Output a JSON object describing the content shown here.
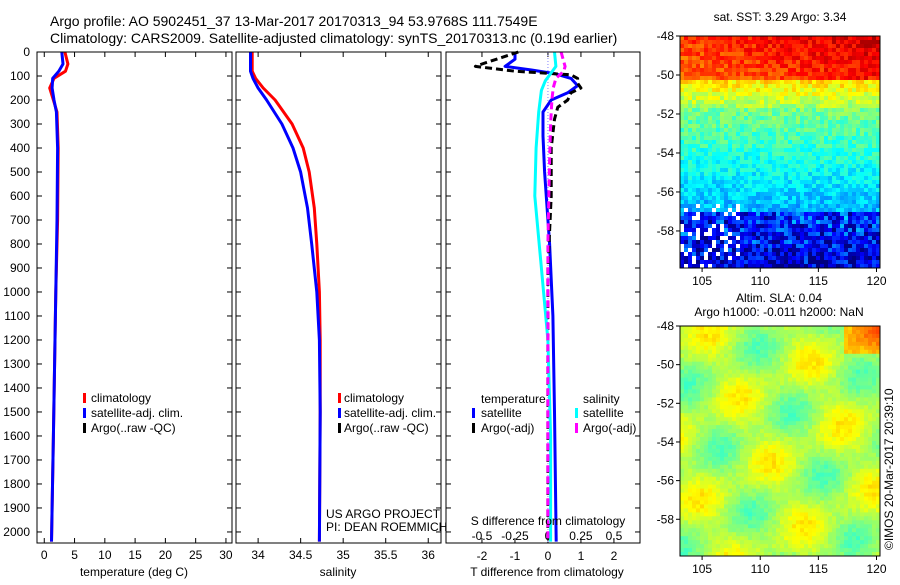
{
  "header": {
    "line1": "Argo profile: AO 5902451_37 13-Mar-2017 20170313_94 53.9768S 111.7549E",
    "line2": "Climatology: CARS2009. Satellite-adjusted climatology: synTS_20170313.nc (0.19d earlier)"
  },
  "credit": {
    "project": "US ARGO PROJECT",
    "pi": "PI: DEAN ROEMMICH"
  },
  "watermark": "©IMOS 20-Mar-2017 20:39:10",
  "colors": {
    "climatology": "#ff0000",
    "satellite_t": "#0000ff",
    "argo_t": "#000000",
    "satellite_s": "#00ffff",
    "argo_s": "#ff00ff"
  },
  "chart_data": [
    {
      "type": "line",
      "id": "temperature",
      "xlabel": "temperature (deg C)",
      "ylabel": "",
      "xlim": [
        -1.2,
        31
      ],
      "ylim": [
        0,
        2046
      ],
      "xticks": [
        0,
        5,
        10,
        15,
        20,
        25,
        30
      ],
      "yticks": [
        0,
        100,
        200,
        300,
        400,
        500,
        600,
        700,
        800,
        900,
        1000,
        1100,
        1200,
        1300,
        1400,
        1500,
        1600,
        1700,
        1800,
        1900,
        2000
      ],
      "legend": [
        "climatology",
        "satellite-adj. clim.",
        "Argo(..raw -QC)"
      ],
      "series": [
        {
          "name": "climatology",
          "color": "#ff0000",
          "depth": [
            0,
            50,
            80,
            110,
            150,
            200,
            250,
            400,
            700,
            1000,
            1300,
            1600,
            1900,
            2040
          ],
          "values": [
            3.4,
            3.9,
            3.5,
            1.6,
            0.9,
            1.5,
            2.1,
            2.3,
            2.2,
            1.9,
            1.7,
            1.5,
            1.3,
            1.2
          ]
        },
        {
          "name": "satellite-adj. clim.",
          "color": "#0000ff",
          "depth": [
            0,
            50,
            80,
            110,
            150,
            200,
            250,
            400,
            700,
            1000,
            1300,
            1600,
            1900,
            2040
          ],
          "values": [
            2.9,
            3.1,
            2.4,
            1.4,
            1.3,
            1.6,
            2.0,
            2.2,
            2.1,
            1.9,
            1.7,
            1.5,
            1.3,
            1.2
          ]
        }
      ]
    },
    {
      "type": "line",
      "id": "salinity",
      "xlabel": "salinity",
      "xlim": [
        33.74,
        36.15
      ],
      "ylim": [
        0,
        2046
      ],
      "xticks": [
        34,
        34.5,
        35,
        35.5,
        36
      ],
      "legend": [
        "climatology",
        "satellite-adj. clim.",
        "Argo(..raw -QC)"
      ],
      "series": [
        {
          "name": "climatology",
          "color": "#ff0000",
          "depth": [
            0,
            80,
            110,
            150,
            200,
            300,
            400,
            500,
            650,
            800,
            1000,
            1200,
            1500,
            2040
          ],
          "values": [
            33.93,
            33.93,
            33.97,
            34.06,
            34.2,
            34.4,
            34.53,
            34.6,
            34.66,
            34.69,
            34.72,
            34.73,
            34.73,
            34.72
          ]
        },
        {
          "name": "satellite-adj. clim.",
          "color": "#0000ff",
          "depth": [
            0,
            80,
            110,
            150,
            200,
            300,
            400,
            500,
            650,
            800,
            1000,
            1200,
            1500,
            2040
          ],
          "values": [
            33.91,
            33.91,
            33.94,
            34.0,
            34.1,
            34.28,
            34.41,
            34.5,
            34.58,
            34.63,
            34.69,
            34.72,
            34.73,
            34.72
          ]
        }
      ]
    },
    {
      "type": "line",
      "id": "difference",
      "xlabel": "T difference from climatology",
      "x2label": "S difference from climatology",
      "xlim": [
        -3.09,
        2.79
      ],
      "ylim": [
        0,
        2046
      ],
      "xticks": [
        -2,
        -1,
        0,
        1,
        2
      ],
      "x2ticks": [
        -0.5,
        -0.25,
        0,
        0.25,
        0.5
      ],
      "legend_titles": [
        "temperature",
        "salinity"
      ],
      "legend": [
        "satellite",
        "Argo(-adj)",
        "satellite",
        "Argo(-adj)"
      ],
      "series": [
        {
          "name": "temperature satellite",
          "color": "#0000ff",
          "dash": false,
          "scale": "T",
          "depth": [
            0,
            30,
            60,
            75,
            90,
            110,
            140,
            170,
            200,
            250,
            350,
            500,
            800,
            1100,
            1500,
            2040
          ],
          "values": [
            -1.0,
            -1.0,
            -1.3,
            -0.5,
            0.2,
            0.7,
            0.9,
            0.6,
            0.1,
            -0.15,
            -0.15,
            -0.1,
            0.05,
            0.15,
            0.2,
            0.25
          ]
        },
        {
          "name": "temperature Argo(-adj)",
          "color": "#000000",
          "dash": true,
          "scale": "T",
          "depth": [
            0,
            50,
            60,
            80,
            95,
            110,
            130,
            150,
            170,
            200,
            230,
            280,
            400,
            600,
            900,
            1300,
            2040
          ],
          "values": [
            -0.9,
            -2.0,
            -2.2,
            -1.0,
            0.7,
            0.9,
            0.9,
            1.0,
            0.7,
            0.6,
            0.3,
            0.2,
            0.1,
            0.1,
            0.0,
            0.0,
            0.0
          ]
        },
        {
          "name": "salinity satellite",
          "color": "#00ffff",
          "dash": false,
          "scale": "S",
          "depth": [
            0,
            60,
            90,
            120,
            160,
            250,
            400,
            600,
            900,
            1200,
            1600,
            2040
          ],
          "values": [
            0.05,
            0.06,
            0.02,
            -0.02,
            -0.05,
            -0.07,
            -0.09,
            -0.1,
            -0.05,
            0.0,
            0.02,
            0.02
          ]
        },
        {
          "name": "salinity Argo(-adj)",
          "color": "#ff00ff",
          "dash": true,
          "scale": "S",
          "depth": [
            0,
            60,
            80,
            110,
            150,
            200,
            300,
            500,
            800,
            1200,
            2040
          ],
          "values": [
            0.1,
            0.13,
            0.12,
            0.06,
            0.04,
            0.03,
            0.02,
            0.01,
            0.0,
            0.0,
            0.0
          ]
        }
      ]
    },
    {
      "type": "heatmap",
      "id": "sst-map",
      "title": "sat. SST: 3.29 Argo: 3.34",
      "xticks": [
        105,
        110,
        115,
        120
      ],
      "yticks": [
        -48,
        -50,
        -52,
        -54,
        -56,
        -58
      ],
      "xlim": [
        103.1,
        120.3
      ],
      "ylim": [
        -48,
        -59.9
      ]
    },
    {
      "type": "heatmap",
      "id": "sla-map",
      "title": "Altim. SLA: 0.04",
      "subtitle": "Argo h1000: -0.011 h2000: NaN",
      "xticks": [
        105,
        110,
        115,
        120
      ],
      "yticks": [
        -48,
        -50,
        -52,
        -54,
        -56,
        -58
      ],
      "xlim": [
        103.1,
        120.3
      ],
      "ylim": [
        -48,
        -59.9
      ]
    }
  ]
}
